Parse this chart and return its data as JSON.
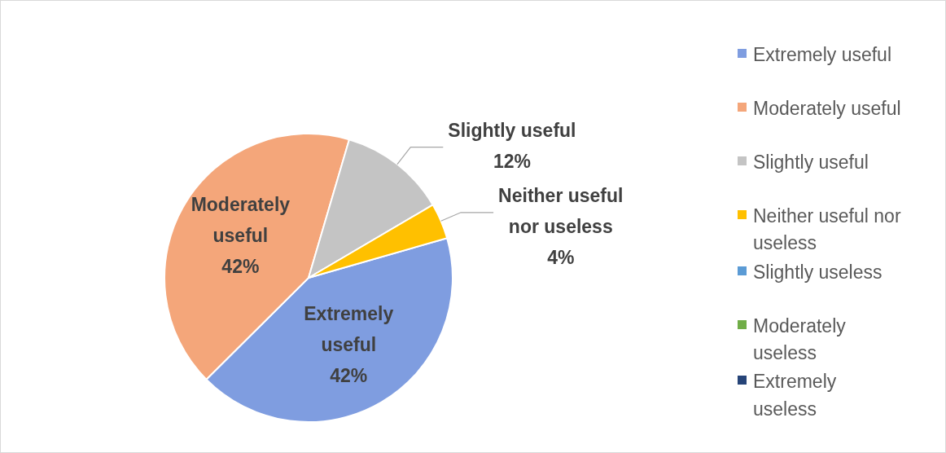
{
  "chart_data": {
    "type": "pie",
    "categories": [
      "Extremely useful",
      "Moderately useful",
      "Slightly useful",
      "Neither useful nor useless",
      "Slightly useless",
      "Moderately useless",
      "Extremely useless"
    ],
    "values": [
      42,
      42,
      12,
      4,
      0,
      0,
      0
    ],
    "colors": [
      "#7f9de0",
      "#f4a67a",
      "#c4c4c4",
      "#ffc000",
      "#5b9bd5",
      "#70ad47",
      "#264478"
    ],
    "value_labels": [
      "42%",
      "42%",
      "12%",
      "4%",
      null,
      null,
      null
    ],
    "legend": "right"
  }
}
